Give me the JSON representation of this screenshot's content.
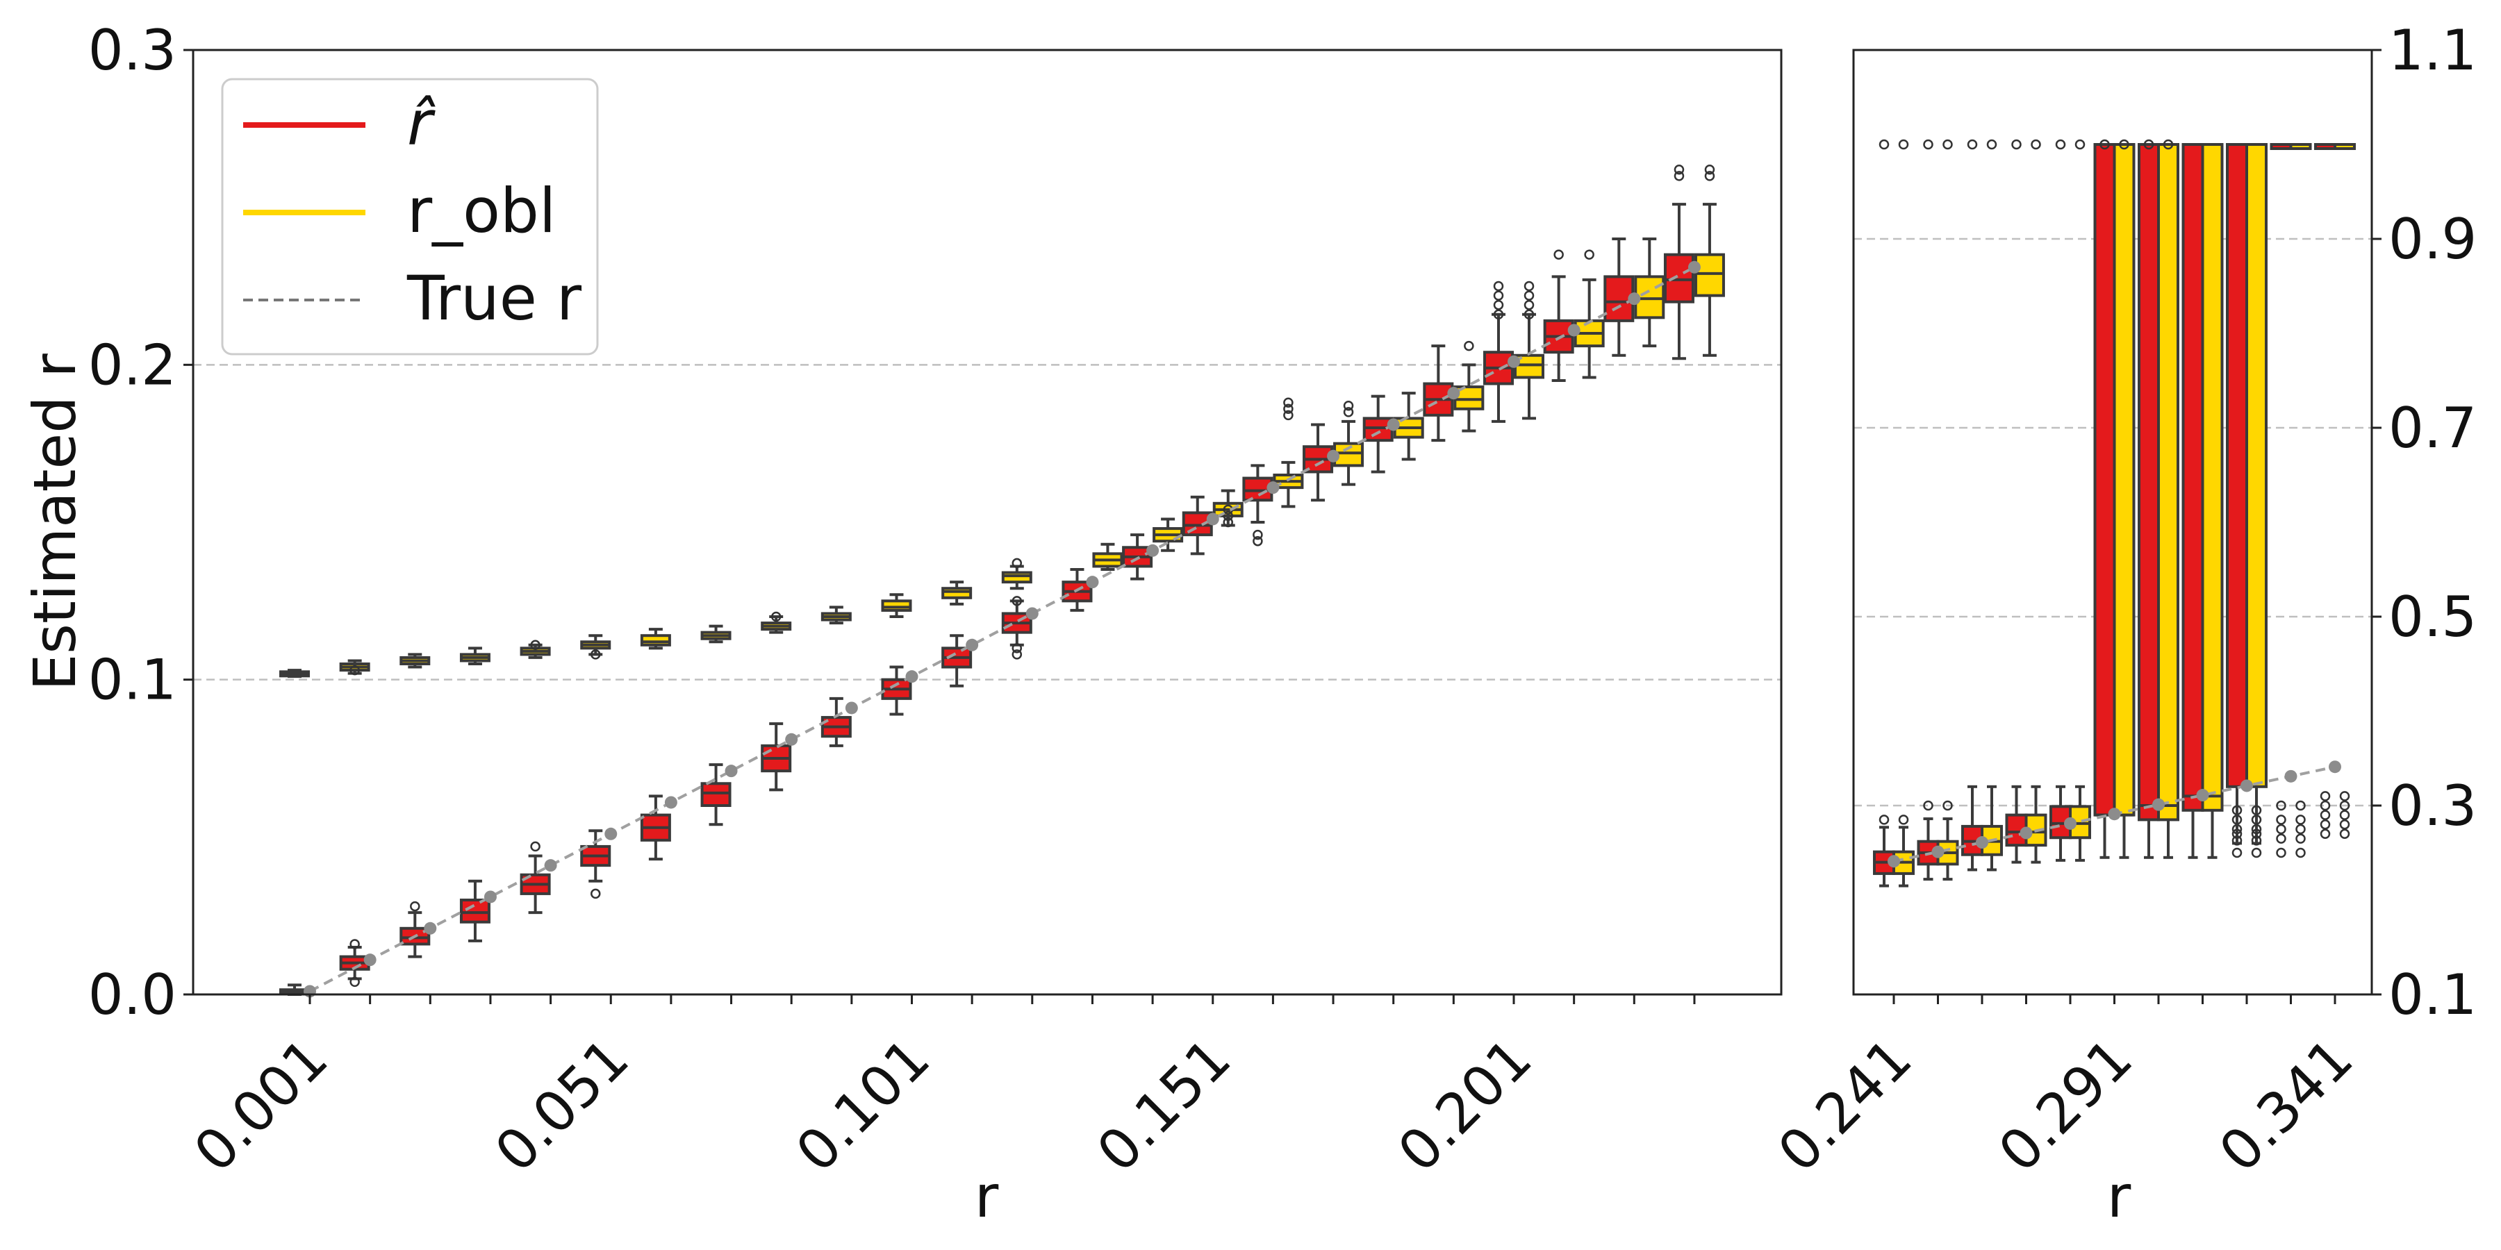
{
  "chart_data": [
    {
      "type": "boxplot",
      "panel": "left",
      "xlabel": "r",
      "ylabel": "Estimated r",
      "ylim": [
        0.0,
        0.3
      ],
      "yticks": [
        0.0,
        0.1,
        0.2,
        0.3
      ],
      "ytick_labels": [
        "0.0",
        "0.1",
        "0.2",
        "0.3"
      ],
      "y_axis_side": "left",
      "xtick_labels": [
        "0.001",
        "0.051",
        "0.101",
        "0.151",
        "0.201"
      ],
      "grid": "horizontal dashed",
      "legend": {
        "placement": "top-left",
        "entries": [
          {
            "label": "r̂",
            "color": "#e41a1c",
            "style": "solid"
          },
          {
            "label": "r_obl",
            "color": "#ffd700",
            "style": "solid"
          },
          {
            "label": "True r",
            "color": "#777777",
            "style": "dashed"
          }
        ]
      },
      "true_r": [
        0.001,
        0.011,
        0.021,
        0.031,
        0.041,
        0.051,
        0.061,
        0.071,
        0.081,
        0.091,
        0.101,
        0.111,
        0.121,
        0.131,
        0.141,
        0.151,
        0.161,
        0.171,
        0.181,
        0.191,
        0.201,
        0.211,
        0.221,
        0.231
      ],
      "series": [
        {
          "name": "r̂",
          "color": "#e41a1c",
          "medians": [
            0.001,
            0.01,
            0.018,
            0.026,
            0.035,
            0.044,
            0.053,
            0.064,
            0.075,
            0.085,
            0.097,
            0.107,
            0.118,
            0.128,
            0.139,
            0.149,
            0.16,
            0.17,
            0.18,
            0.189,
            0.199,
            0.209,
            0.22,
            0.227
          ],
          "q1": [
            0.0005,
            0.008,
            0.016,
            0.023,
            0.032,
            0.041,
            0.049,
            0.06,
            0.071,
            0.082,
            0.094,
            0.104,
            0.115,
            0.125,
            0.136,
            0.146,
            0.157,
            0.166,
            0.176,
            0.184,
            0.194,
            0.204,
            0.214,
            0.22
          ],
          "q3": [
            0.0015,
            0.012,
            0.021,
            0.03,
            0.038,
            0.047,
            0.057,
            0.067,
            0.079,
            0.088,
            0.1,
            0.11,
            0.121,
            0.131,
            0.142,
            0.153,
            0.164,
            0.174,
            0.183,
            0.194,
            0.204,
            0.214,
            0.228,
            0.235
          ],
          "whisker_low": [
            0.0,
            0.005,
            0.012,
            0.017,
            0.026,
            0.036,
            0.043,
            0.054,
            0.065,
            0.079,
            0.089,
            0.098,
            0.111,
            0.122,
            0.132,
            0.14,
            0.15,
            0.157,
            0.166,
            0.176,
            0.182,
            0.195,
            0.203,
            0.202
          ],
          "whisker_high": [
            0.003,
            0.015,
            0.026,
            0.036,
            0.044,
            0.052,
            0.063,
            0.073,
            0.086,
            0.094,
            0.104,
            0.114,
            0.125,
            0.135,
            0.146,
            0.158,
            0.168,
            0.181,
            0.19,
            0.206,
            0.216,
            0.228,
            0.24,
            0.251
          ],
          "outliers": [
            [],
            [
              0.016,
              0.004
            ],
            [
              0.028
            ],
            [],
            [
              0.047
            ],
            [
              0.032
            ],
            [],
            [],
            [],
            [],
            [],
            [],
            [
              0.125,
              0.11,
              0.108
            ],
            [],
            [],
            [],
            [
              0.144,
              0.146
            ],
            [],
            [],
            [],
            [
              0.225,
              0.222,
              0.219,
              0.216
            ],
            [
              0.235
            ],
            [],
            [
              0.262,
              0.26
            ]
          ]
        },
        {
          "name": "r_obl",
          "color": "#ffd700",
          "medians": [
            0.102,
            0.104,
            0.106,
            0.107,
            0.109,
            0.111,
            0.112,
            0.114,
            0.117,
            0.12,
            0.123,
            0.128,
            0.133,
            0.138,
            0.146,
            0.154,
            0.163,
            0.172,
            0.18,
            0.189,
            0.2,
            0.21,
            0.221,
            0.229
          ],
          "q1": [
            0.1015,
            0.103,
            0.105,
            0.106,
            0.108,
            0.11,
            0.111,
            0.113,
            0.116,
            0.119,
            0.122,
            0.126,
            0.131,
            0.136,
            0.144,
            0.152,
            0.161,
            0.168,
            0.177,
            0.186,
            0.196,
            0.206,
            0.215,
            0.222
          ],
          "q3": [
            0.1025,
            0.105,
            0.107,
            0.108,
            0.11,
            0.112,
            0.114,
            0.115,
            0.118,
            0.121,
            0.125,
            0.129,
            0.134,
            0.14,
            0.148,
            0.156,
            0.165,
            0.175,
            0.183,
            0.193,
            0.203,
            0.214,
            0.228,
            0.235
          ],
          "whisker_low": [
            0.101,
            0.102,
            0.104,
            0.105,
            0.107,
            0.108,
            0.11,
            0.112,
            0.115,
            0.118,
            0.12,
            0.124,
            0.129,
            0.135,
            0.141,
            0.149,
            0.155,
            0.162,
            0.17,
            0.179,
            0.183,
            0.196,
            0.206,
            0.203
          ],
          "whisker_high": [
            0.103,
            0.106,
            0.108,
            0.11,
            0.111,
            0.114,
            0.116,
            0.117,
            0.12,
            0.123,
            0.127,
            0.131,
            0.136,
            0.143,
            0.151,
            0.16,
            0.169,
            0.182,
            0.191,
            0.2,
            0.216,
            0.227,
            0.24,
            0.251
          ],
          "outliers": [
            [],
            [
              0.103
            ],
            [],
            [],
            [
              0.111
            ],
            [
              0.108
            ],
            [],
            [],
            [
              0.12
            ],
            [],
            [],
            [],
            [
              0.137
            ],
            [],
            [],
            [
              0.15,
              0.152,
              0.154
            ],
            [
              0.184,
              0.186,
              0.188
            ],
            [
              0.185,
              0.187
            ],
            [],
            [
              0.206
            ],
            [
              0.225,
              0.222,
              0.219,
              0.216
            ],
            [
              0.235
            ],
            [],
            [
              0.262,
              0.26
            ]
          ]
        }
      ]
    },
    {
      "type": "boxplot",
      "panel": "right",
      "xlabel": "r",
      "ylabel": "",
      "ylim": [
        0.1,
        1.1
      ],
      "yticks": [
        0.1,
        0.3,
        0.5,
        0.7,
        0.9,
        1.1
      ],
      "ytick_labels": [
        "0.1",
        "0.3",
        "0.5",
        "0.7",
        "0.9",
        "1.1"
      ],
      "y_axis_side": "right",
      "xtick_labels": [
        "0.241",
        "0.291",
        "0.341"
      ],
      "grid": "horizontal dashed",
      "true_r": [
        0.241,
        0.251,
        0.261,
        0.271,
        0.281,
        0.291,
        0.301,
        0.311,
        0.321,
        0.331,
        0.341
      ],
      "series": [
        {
          "name": "r̂",
          "color": "#e41a1c",
          "medians": [
            0.24,
            0.25,
            0.262,
            0.272,
            0.281,
            0.29,
            0.3,
            0.31,
            1.0,
            1.0,
            1.0
          ],
          "q1": [
            0.228,
            0.238,
            0.248,
            0.258,
            0.266,
            0.29,
            0.285,
            0.295,
            0.32,
            1.0,
            1.0
          ],
          "q3": [
            0.251,
            0.262,
            0.278,
            0.29,
            0.299,
            1.0,
            1.0,
            1.0,
            1.0,
            1.0,
            1.0
          ],
          "whisker_low": [
            0.215,
            0.222,
            0.232,
            0.24,
            0.242,
            0.245,
            0.245,
            0.245,
            0.26,
            1.0,
            1.0
          ],
          "whisker_high": [
            0.277,
            0.286,
            0.32,
            0.32,
            0.32,
            1.0,
            1.0,
            1.0,
            1.0,
            1.0,
            1.0
          ],
          "outliers": [
            [
              0.285
            ],
            [
              0.3
            ],
            [],
            [],
            [],
            [],
            [],
            [],
            [],
            [],
            []
          ],
          "top_outliers": [
            1.0,
            1.0,
            1.0,
            1.0,
            1.0,
            1.0,
            1.0,
            0,
            0,
            0,
            0
          ],
          "bottom_outliers": [
            [],
            [],
            [],
            [],
            [],
            [],
            [],
            [],
            [
              0.25,
              0.263,
              0.27,
              0.275,
              0.285,
              0.295
            ],
            [
              0.25,
              0.265,
              0.275,
              0.285,
              0.3
            ],
            [
              0.27,
              0.28,
              0.29,
              0.3,
              0.31
            ]
          ]
        },
        {
          "name": "r_obl",
          "color": "#ffd700",
          "medians": [
            0.24,
            0.25,
            0.262,
            0.272,
            0.281,
            0.29,
            0.3,
            0.31,
            1.0,
            1.0,
            1.0
          ],
          "q1": [
            0.228,
            0.238,
            0.248,
            0.258,
            0.266,
            0.29,
            0.285,
            0.295,
            0.32,
            1.0,
            1.0
          ],
          "q3": [
            0.251,
            0.262,
            0.278,
            0.29,
            0.299,
            1.0,
            1.0,
            1.0,
            1.0,
            1.0,
            1.0
          ],
          "whisker_low": [
            0.215,
            0.222,
            0.232,
            0.24,
            0.242,
            0.245,
            0.245,
            0.245,
            0.26,
            1.0,
            1.0
          ],
          "whisker_high": [
            0.277,
            0.286,
            0.32,
            0.32,
            0.32,
            1.0,
            1.0,
            1.0,
            1.0,
            1.0,
            1.0
          ],
          "outliers": [
            [
              0.285
            ],
            [
              0.3
            ],
            [],
            [],
            [],
            [],
            [],
            [],
            [],
            [],
            []
          ],
          "bottom_outliers": [
            [],
            [],
            [],
            [],
            [],
            [],
            [],
            [],
            [
              0.25,
              0.263,
              0.27,
              0.275,
              0.285,
              0.295
            ],
            [
              0.25,
              0.265,
              0.275,
              0.285,
              0.3
            ],
            [
              0.27,
              0.28,
              0.29,
              0.3,
              0.31
            ]
          ]
        }
      ]
    }
  ]
}
